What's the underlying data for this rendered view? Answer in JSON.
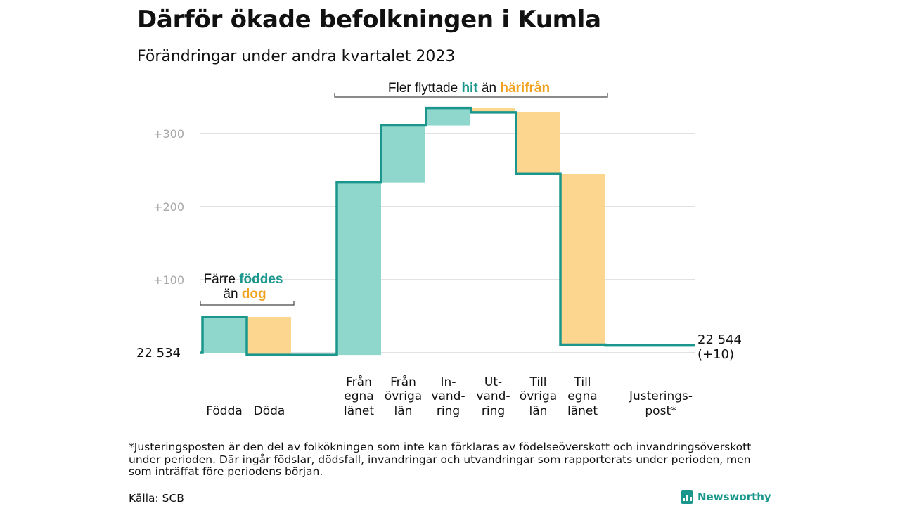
{
  "title": "Därför ökade befolkningen i Kumla",
  "subtitle": "Förändringar under andra kvartalet 2023",
  "chart_data": {
    "type": "waterfall",
    "start_value": 22534,
    "start_label": "22  534",
    "end_label_line1": "22 544",
    "end_label_line2": "(+10)",
    "yticks": [
      {
        "value": 100,
        "label": "+100"
      },
      {
        "value": 200,
        "label": "+200"
      },
      {
        "value": 300,
        "label": "+300"
      }
    ],
    "steps": [
      {
        "lines": [
          "",
          "",
          "Födda"
        ],
        "from": 0,
        "to": 49,
        "color": "#8fd7cc"
      },
      {
        "lines": [
          "",
          "",
          "Döda"
        ],
        "from": 49,
        "to": -3,
        "color": "#fcd58f"
      },
      {
        "lines": [],
        "from": -3,
        "to": -3,
        "color": "#dddddd",
        "gap": true
      },
      {
        "lines": [
          "Från",
          "egna",
          "länet"
        ],
        "from": -3,
        "to": 233,
        "color": "#8fd7cc"
      },
      {
        "lines": [
          "Från",
          "övriga",
          "län"
        ],
        "from": 233,
        "to": 311,
        "color": "#8fd7cc"
      },
      {
        "lines": [
          "In-",
          "vand-",
          "ring"
        ],
        "from": 311,
        "to": 335,
        "color": "#8fd7cc"
      },
      {
        "lines": [
          "Ut-",
          "vand-",
          "ring"
        ],
        "from": 335,
        "to": 329,
        "color": "#fcd58f"
      },
      {
        "lines": [
          "Till",
          "övriga",
          "län"
        ],
        "from": 329,
        "to": 245,
        "color": "#fcd58f"
      },
      {
        "lines": [
          "Till",
          "egna",
          "länet"
        ],
        "from": 245,
        "to": 11,
        "color": "#fcd58f"
      },
      {
        "lines": [
          "",
          "Justerings-",
          "post*"
        ],
        "from": 11,
        "to": 10,
        "color": "#dddddd",
        "wide": true
      }
    ],
    "annotations": {
      "births": {
        "part1": "Färre ",
        "hl1": "föddes",
        "part2": "än ",
        "hl2": "dog"
      },
      "moves": {
        "part1": "Fler flyttade ",
        "hl1": "hit",
        "part2": " än ",
        "hl2": "härifrån"
      }
    },
    "colors": {
      "teal": "#1a968c",
      "teal_light": "#8fd7cc",
      "orange": "#f0a21e",
      "orange_light": "#fcd58f"
    }
  },
  "footnote": "*Justeringsposten är den del av folkökningen som inte kan förklaras av födelseöverskott och invandringsöverskott under perioden. Där ingår födslar, dödsfall, invandringar och utvandringar som rapporterats under perioden, men som inträffat före periodens början.",
  "source": "Källa: SCB",
  "brand": {
    "name": "Newsworthy",
    "icon": "bar-chart-icon"
  }
}
